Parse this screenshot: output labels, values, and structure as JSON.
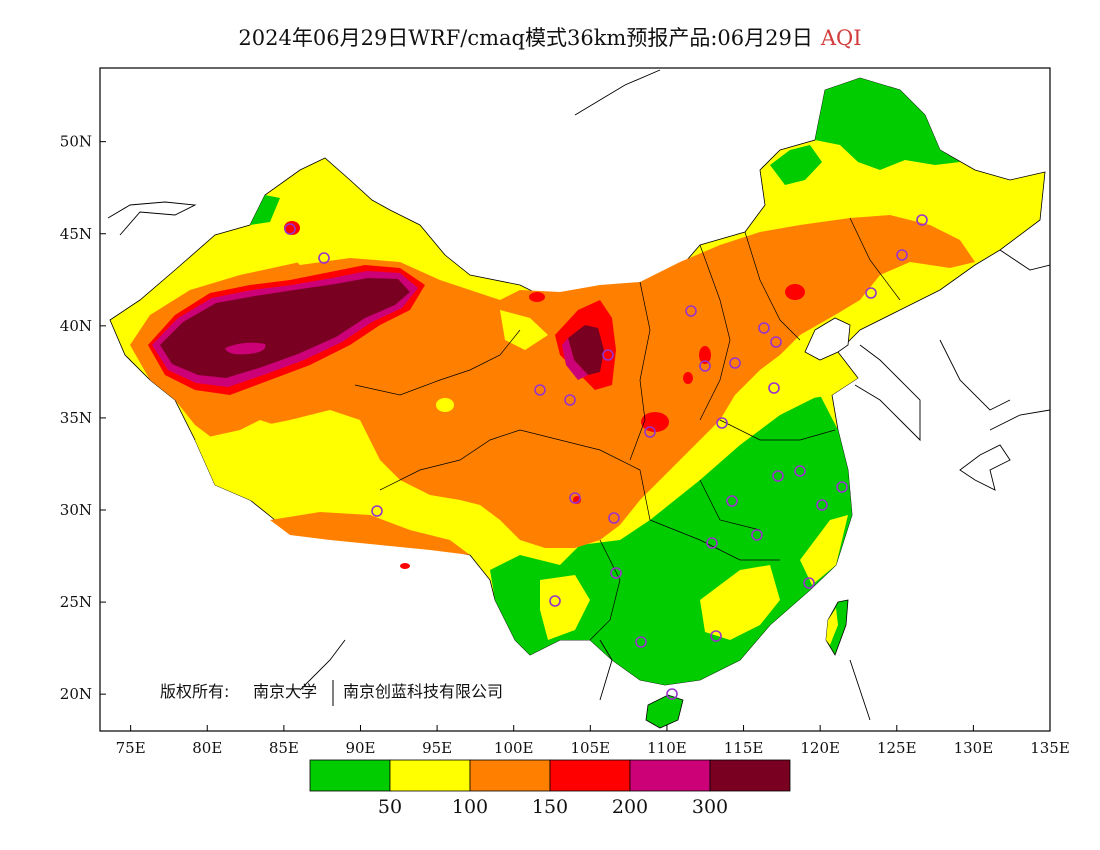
{
  "title": {
    "main": "2024年06月29日WRF/cmaq模式36km预报产品:06月29日",
    "variable": "AQI"
  },
  "copyright": {
    "prefix": "版权所有:",
    "owner1": "南京大学",
    "owner2": "南京创蓝科技有限公司"
  },
  "axes": {
    "x_ticks": [
      "75E",
      "80E",
      "85E",
      "90E",
      "95E",
      "100E",
      "105E",
      "110E",
      "115E",
      "120E",
      "125E",
      "130E",
      "135E"
    ],
    "y_ticks": [
      "50N",
      "45N",
      "40N",
      "35N",
      "30N",
      "25N",
      "20N"
    ],
    "x_lim": [
      73,
      135
    ],
    "y_lim": [
      18,
      54
    ]
  },
  "legend": {
    "thresholds": [
      "50",
      "100",
      "150",
      "200",
      "300"
    ],
    "colors": [
      "#00cc00",
      "#ffff00",
      "#ff8000",
      "#ff0000",
      "#cc0077",
      "#7a0022"
    ]
  },
  "colors": {
    "good": "#00cc00",
    "moderate": "#ffff00",
    "unhealthy_sensitive": "#ff8000",
    "unhealthy": "#ff0000",
    "very_unhealthy": "#cc0077",
    "hazardous": "#7a0022",
    "station_marker": "#9933cc"
  }
}
